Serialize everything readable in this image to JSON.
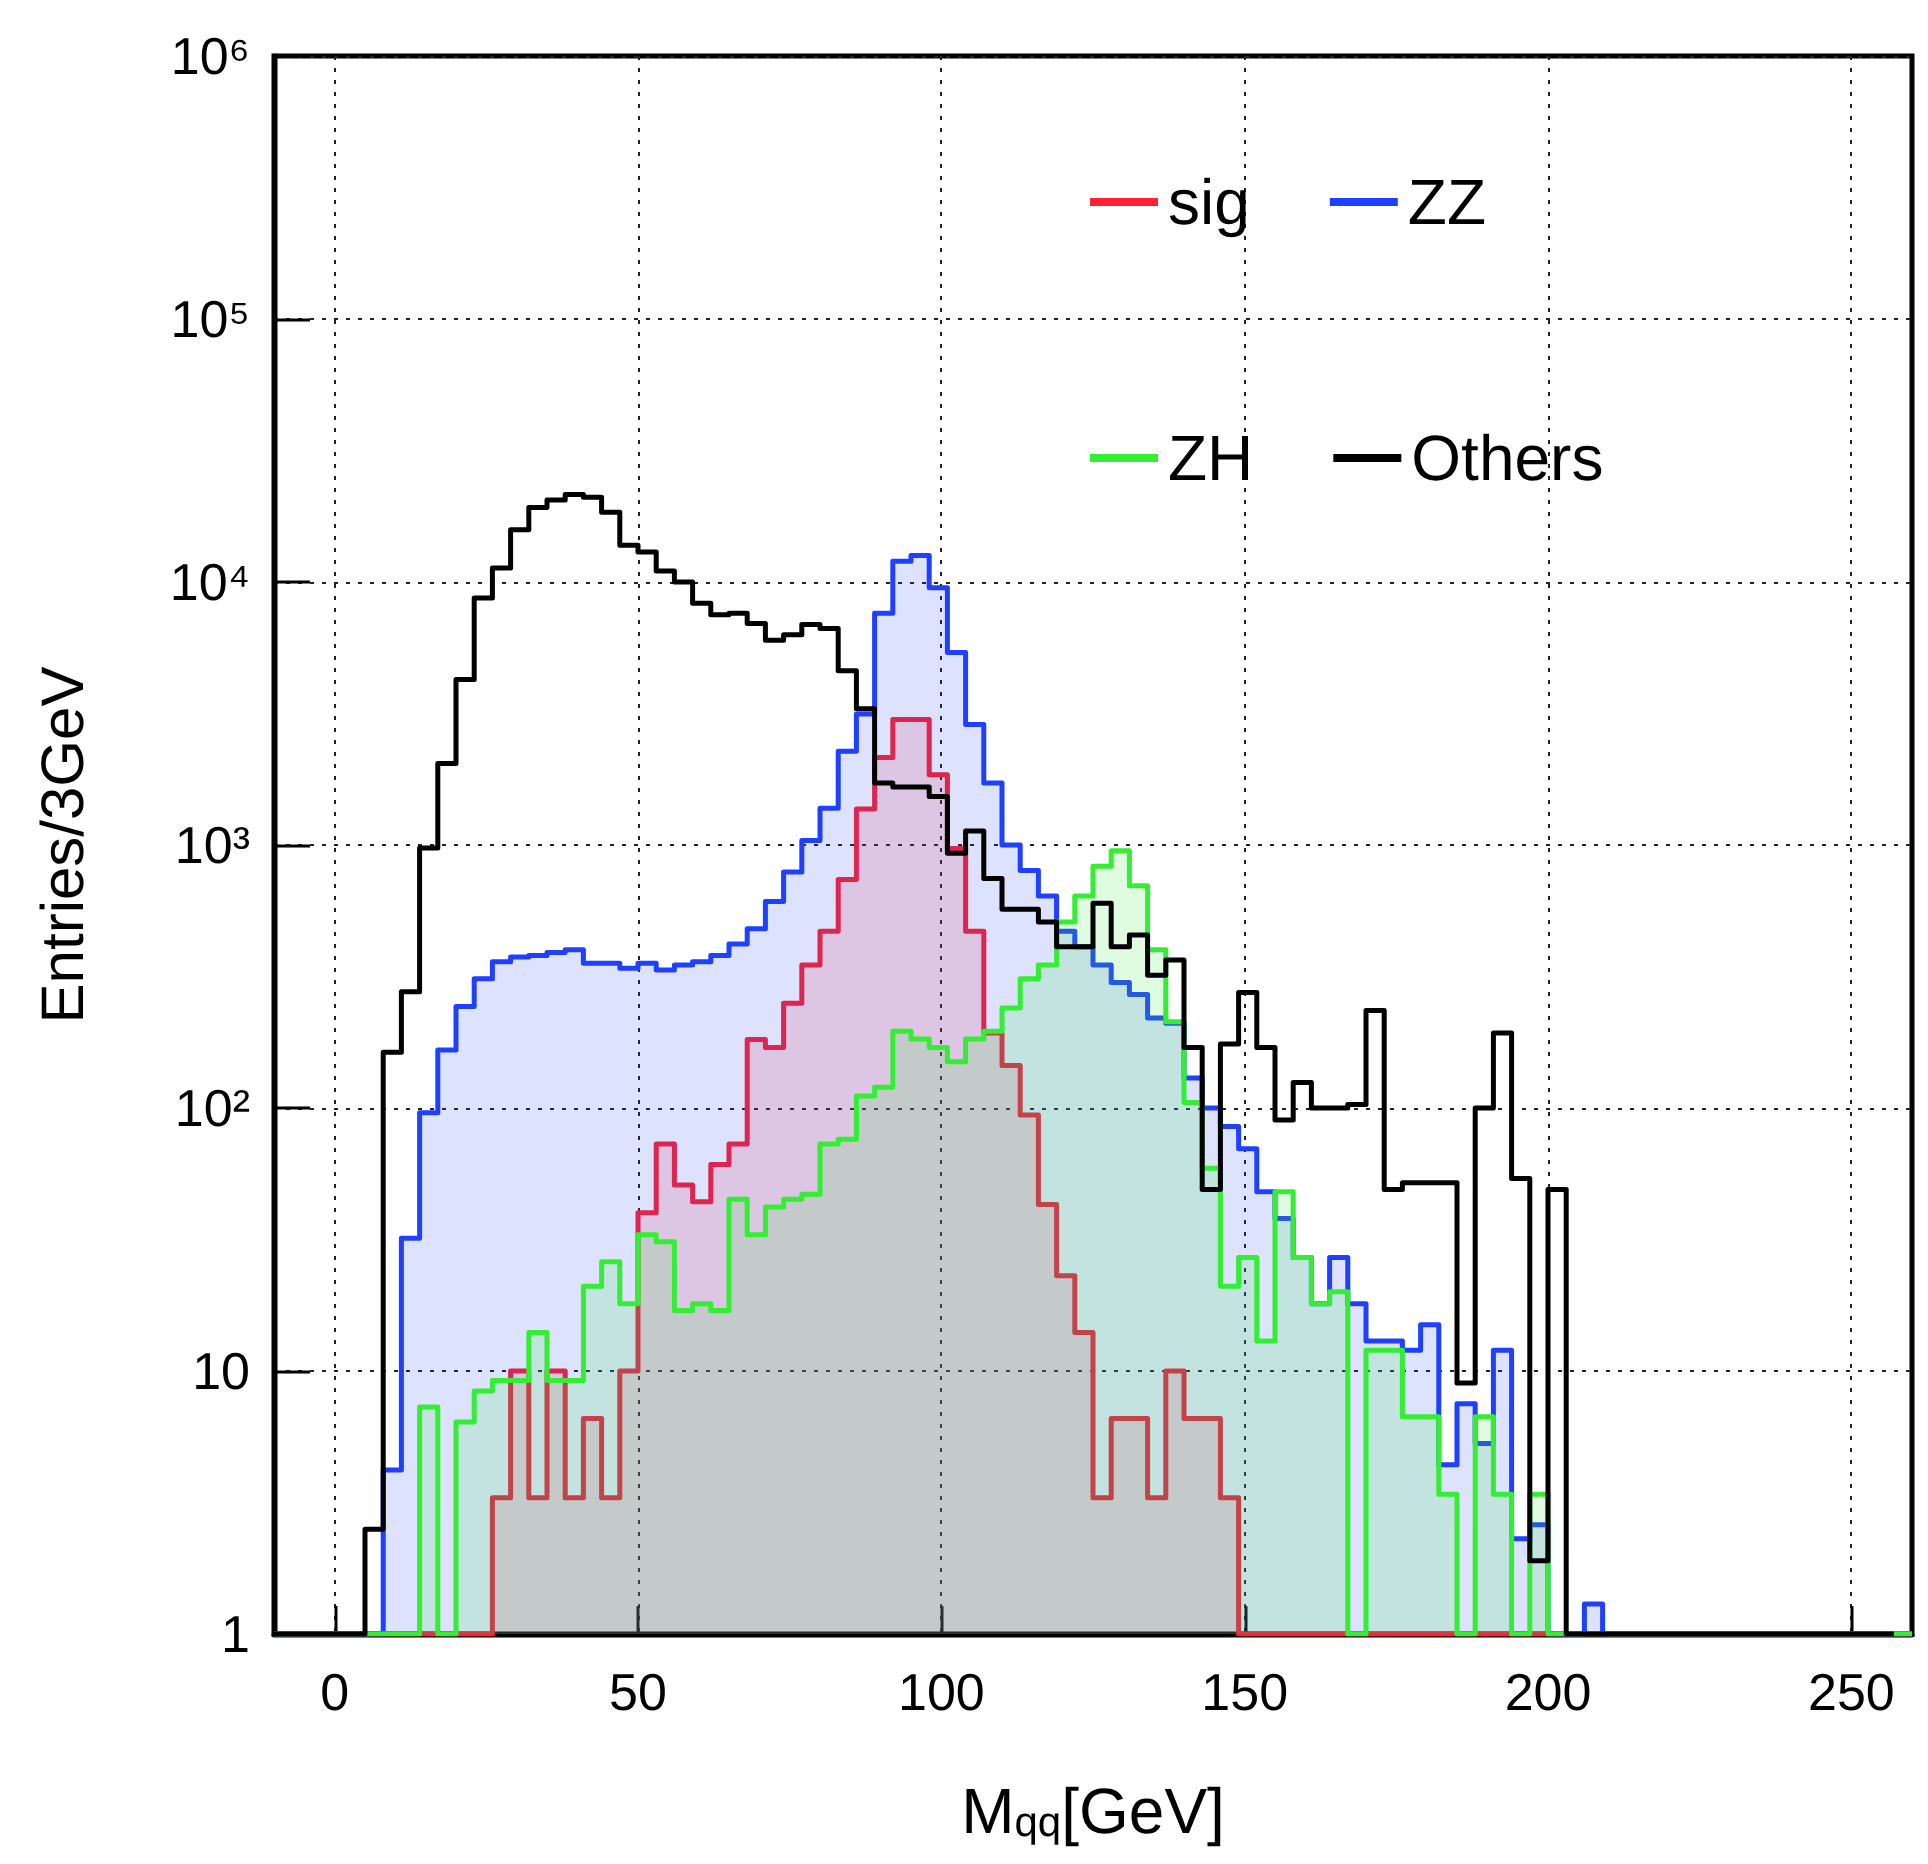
{
  "chart_data": {
    "type": "histogram",
    "xlabel": "M$_{qq}$[GeV]",
    "ylabel": "Entries/3GeV",
    "bins": [
      -10,
      -7,
      -4,
      -1,
      2,
      5,
      8,
      11,
      14,
      17,
      20,
      23,
      26,
      29,
      32,
      35,
      38,
      41,
      44,
      47,
      50,
      53,
      56,
      59,
      62,
      65,
      68,
      71,
      74,
      77,
      80,
      83,
      86,
      89,
      92,
      95,
      98,
      101,
      104,
      107,
      110,
      113,
      116,
      119,
      122,
      125,
      128,
      131,
      134,
      137,
      140,
      143,
      146,
      149,
      152,
      155,
      158,
      161,
      164,
      167,
      170,
      173,
      176,
      179,
      182,
      185,
      188,
      191,
      194,
      197,
      200,
      203,
      206,
      209,
      212,
      215,
      218,
      221,
      224,
      227,
      230,
      233,
      236,
      239,
      242,
      245,
      248,
      251,
      254,
      257,
      260
    ],
    "series": [
      {
        "name": "sig",
        "color": "#ff2030",
        "values": [
          1,
          1,
          1,
          1,
          1,
          1,
          1,
          1,
          1,
          1,
          1,
          1,
          3.3,
          10,
          3.3,
          10,
          3.3,
          6.6,
          3.3,
          10,
          40,
          73,
          51,
          44,
          61,
          73,
          182,
          170,
          250,
          350,
          470,
          740,
          1370,
          2150,
          3000,
          3000,
          1850,
          970,
          470,
          193,
          145,
          94,
          43,
          23,
          14,
          3.3,
          6.6,
          6.6,
          3.3,
          10,
          6.6,
          6.6,
          3.3,
          1,
          1,
          1,
          1,
          1,
          1,
          1,
          1,
          1,
          1,
          1,
          1,
          1,
          1,
          1,
          1,
          1,
          1,
          1,
          1,
          1,
          1,
          1,
          1,
          1,
          1,
          1,
          1,
          1,
          1,
          1,
          1,
          1,
          1,
          1,
          1,
          1
        ]
      },
      {
        "name": "ZZ",
        "color": "#2040ff",
        "values": [
          1,
          1,
          1,
          1,
          1,
          1,
          4.2,
          32,
          96,
          166,
          243,
          310,
          360,
          375,
          380,
          390,
          400,
          355,
          355,
          340,
          355,
          335,
          350,
          360,
          380,
          420,
          480,
          610,
          790,
          1040,
          1380,
          2270,
          3150,
          7600,
          12000,
          12600,
          9500,
          5400,
          2870,
          1720,
          1000,
          800,
          640,
          470,
          410,
          350,
          300,
          270,
          220,
          210,
          130,
          100,
          85,
          70,
          48,
          38,
          27,
          18,
          27,
          18,
          13,
          13,
          12,
          15,
          4.4,
          7.5,
          5.3,
          12,
          2.3,
          2.6,
          1,
          1,
          1.3,
          1,
          1,
          1,
          1,
          1,
          1,
          1,
          1,
          1,
          1,
          1,
          1,
          1,
          1,
          1,
          1,
          1
        ]
      },
      {
        "name": "ZH",
        "color": "#33ee33",
        "values": [
          1,
          1,
          1,
          1,
          1,
          1,
          1,
          1,
          7.3,
          1,
          6.4,
          8.4,
          9.2,
          9.2,
          14,
          9.2,
          9.2,
          21,
          26,
          18,
          33,
          31,
          17,
          18,
          17,
          45,
          33,
          42,
          45,
          47,
          73,
          76,
          111,
          120,
          196,
          183,
          170,
          150,
          183,
          196,
          240,
          310,
          350,
          510,
          640,
          830,
          950,
          700,
          400,
          213,
          105,
          59,
          21,
          27,
          13,
          48,
          27,
          18,
          20,
          1,
          12,
          12,
          6.7,
          6.7,
          3.4,
          1,
          6.7,
          3.4,
          1,
          3.4,
          1,
          1,
          1,
          1,
          1,
          1,
          1,
          1,
          1,
          1,
          1,
          1,
          1,
          1,
          1,
          1,
          1,
          1,
          1,
          1
        ]
      },
      {
        "name": "Others",
        "type": "step",
        "color": "#000000",
        "x": [
          -10,
          -7,
          -4,
          -1,
          2,
          5,
          8,
          11,
          14,
          17,
          20,
          23,
          26,
          29,
          32,
          35,
          38,
          41,
          44,
          47,
          50,
          53,
          56,
          59,
          62,
          65,
          68,
          71,
          74,
          77,
          80,
          83,
          86,
          89,
          92,
          95,
          98,
          101,
          104,
          107,
          110,
          113,
          116,
          119,
          122,
          125,
          128,
          131,
          134,
          137,
          140,
          143,
          146,
          149,
          152,
          155,
          158,
          161,
          164,
          167,
          170,
          173,
          176,
          179,
          182,
          185,
          188,
          191,
          194,
          197,
          200,
          203,
          206,
          209,
          212,
          215,
          218,
          221,
          224,
          227,
          230,
          233,
          236,
          239,
          242,
          245,
          248,
          251,
          254,
          257
        ],
        "values": [
          1,
          1,
          1,
          1,
          1,
          2.5,
          163,
          277,
          975,
          2040,
          4260,
          8700,
          11300,
          15800,
          19200,
          20500,
          21500,
          21000,
          18400,
          13800,
          13000,
          11000,
          10000,
          8300,
          7500,
          7600,
          6950,
          6000,
          6300,
          6900,
          6650,
          4600,
          3300,
          1720,
          1660,
          1660,
          1530,
          930,
          1130,
          745,
          570,
          570,
          510,
          410,
          410,
          600,
          410,
          455,
          320,
          365,
          170,
          49,
          175,
          275,
          170,
          90,
          125,
          100,
          100,
          103,
          235,
          49,
          52,
          52,
          52,
          9,
          100,
          193,
          54,
          1.9,
          49,
          1,
          1,
          1,
          1,
          1,
          1,
          1,
          1,
          1,
          1,
          1,
          1,
          1,
          1,
          1,
          1,
          1,
          1,
          1
        ]
      }
    ],
    "xlim": [
      -10,
      260
    ],
    "xticks": [
      0,
      50,
      100,
      150,
      200,
      250
    ],
    "ylim": [
      1,
      1000000
    ],
    "log": true,
    "yticks": [
      {
        "value": 1,
        "label": "1"
      },
      {
        "value": 10,
        "label": "10"
      },
      {
        "value": 100,
        "label": "10²"
      },
      {
        "value": 1000,
        "label": "10³"
      },
      {
        "value": 10000,
        "label": "10⁴"
      },
      {
        "value": 100000,
        "label": "10⁵"
      },
      {
        "value": 1000000,
        "label": "10⁶"
      }
    ],
    "grid": true,
    "legend": "top right",
    "marker": "none"
  }
}
